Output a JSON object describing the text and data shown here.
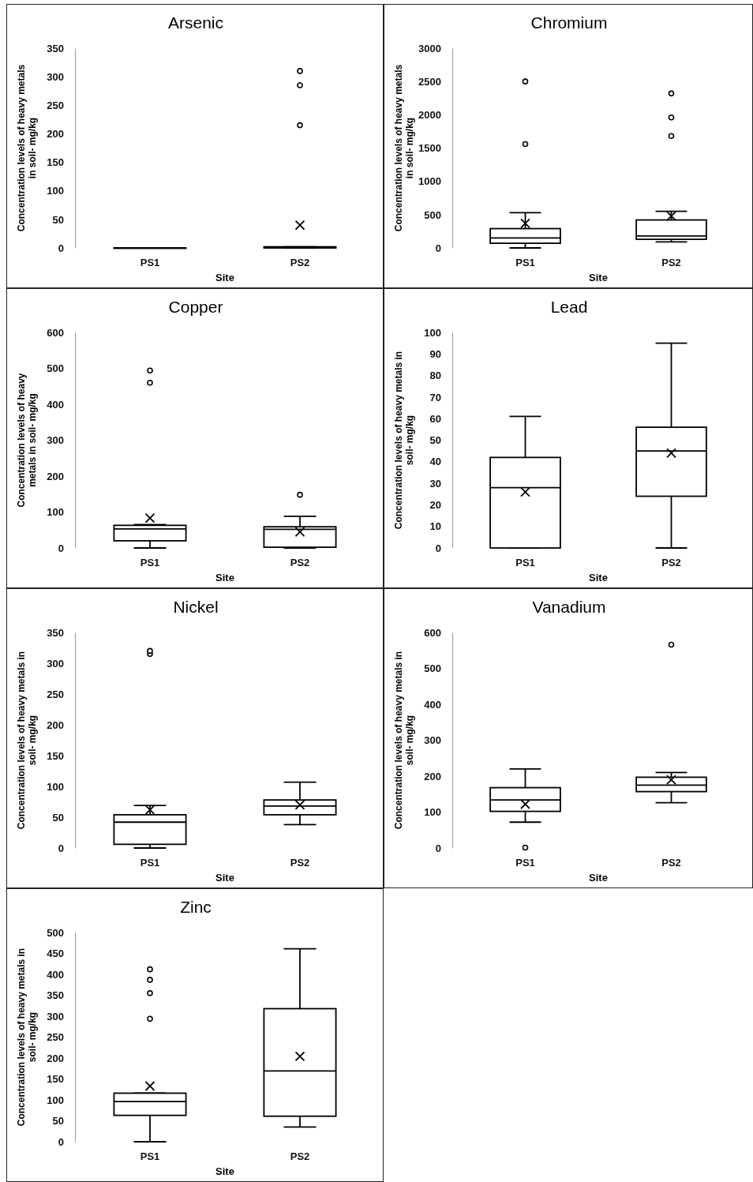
{
  "chart_data": [
    {
      "type": "box",
      "title": "Arsenic",
      "xlabel": "Site",
      "ylabel": "Concentration levels of heavy metals\nin soil- mg/kg",
      "categories": [
        "PS1",
        "PS2"
      ],
      "ylim": [
        0,
        350
      ],
      "yticks": [
        0,
        50,
        100,
        150,
        200,
        250,
        300,
        350
      ],
      "color": "#000000",
      "boxes": [
        {
          "low": 0,
          "q1": 0,
          "median": 0,
          "q3": 0,
          "high": 0
        },
        {
          "low": 0,
          "q1": 0,
          "median": 1,
          "q3": 2,
          "high": 2,
          "mean": 40,
          "outliers": [
            215,
            285,
            310
          ]
        }
      ]
    },
    {
      "type": "box",
      "title": "Chromium",
      "xlabel": "Site",
      "ylabel": "Concentration levels of heavy metals\nin soil- mg/kg",
      "categories": [
        "PS1",
        "PS2"
      ],
      "ylim": [
        0,
        3000
      ],
      "yticks": [
        0,
        500,
        1000,
        1500,
        2000,
        2500,
        3000
      ],
      "color": "#000000",
      "boxes": [
        {
          "low": 0,
          "q1": 70,
          "median": 150,
          "q3": 290,
          "high": 530,
          "mean": 370,
          "outliers": [
            1560,
            2500
          ]
        },
        {
          "low": 90,
          "q1": 130,
          "median": 180,
          "q3": 420,
          "high": 550,
          "mean": 480,
          "outliers": [
            1680,
            1960,
            2320
          ]
        }
      ]
    },
    {
      "type": "box",
      "title": "Copper",
      "xlabel": "Site",
      "ylabel": "Concentration levels of heavy\nmetals in soil- mg/kg",
      "categories": [
        "PS1",
        "PS2"
      ],
      "ylim": [
        0,
        600
      ],
      "yticks": [
        0,
        100,
        200,
        300,
        400,
        500,
        600
      ],
      "color": "#000000",
      "boxes": [
        {
          "low": 0,
          "q1": 20,
          "median": 53,
          "q3": 63,
          "high": 65,
          "mean": 83,
          "outliers": [
            460,
            494
          ]
        },
        {
          "low": 0,
          "q1": 2,
          "median": 52,
          "q3": 59,
          "high": 88,
          "mean": 45,
          "outliers": [
            148
          ]
        }
      ]
    },
    {
      "type": "box",
      "title": "Lead",
      "xlabel": "Site",
      "ylabel": "Concentration levels of heavy metals in\nsoil- mg/kg",
      "categories": [
        "PS1",
        "PS2"
      ],
      "ylim": [
        0,
        100
      ],
      "yticks": [
        0,
        10,
        20,
        30,
        40,
        50,
        60,
        70,
        80,
        90,
        100
      ],
      "color": "#000000",
      "boxes": [
        {
          "low": 0,
          "q1": 0,
          "median": 28,
          "q3": 42,
          "high": 61,
          "mean": 26
        },
        {
          "low": 0,
          "q1": 24,
          "median": 45,
          "q3": 56,
          "high": 95,
          "mean": 44
        }
      ]
    },
    {
      "type": "box",
      "title": "Nickel",
      "xlabel": "Site",
      "ylabel": "Concentration levels of heavy metals in\nsoil- mg/kg",
      "categories": [
        "PS1",
        "PS2"
      ],
      "ylim": [
        0,
        350
      ],
      "yticks": [
        0,
        50,
        100,
        150,
        200,
        250,
        300,
        350
      ],
      "color": "#000000",
      "boxes": [
        {
          "low": 0,
          "q1": 6,
          "median": 42,
          "q3": 54,
          "high": 69,
          "mean": 62,
          "outliers": [
            315,
            320
          ]
        },
        {
          "low": 38,
          "q1": 54,
          "median": 68,
          "q3": 78,
          "high": 107,
          "mean": 70
        }
      ]
    },
    {
      "type": "box",
      "title": "Vanadium",
      "xlabel": "Site",
      "ylabel": "Concentration levels of heavy metals in\nsoil- mg/kg",
      "categories": [
        "PS1",
        "PS2"
      ],
      "ylim": [
        0,
        600
      ],
      "yticks": [
        0,
        100,
        200,
        300,
        400,
        500,
        600
      ],
      "color": "#000000",
      "boxes": [
        {
          "low": 72,
          "q1": 102,
          "median": 134,
          "q3": 168,
          "high": 220,
          "mean": 122,
          "outliers": [
            1
          ]
        },
        {
          "low": 126,
          "q1": 157,
          "median": 175,
          "q3": 197,
          "high": 210,
          "mean": 190,
          "outliers": [
            566
          ]
        }
      ]
    },
    {
      "type": "box",
      "title": "Zinc",
      "xlabel": "Site",
      "ylabel": "Concentration levels of heavy metals in\nsoil- mg/kg",
      "categories": [
        "PS1",
        "PS2"
      ],
      "ylim": [
        0,
        500
      ],
      "yticks": [
        0,
        50,
        100,
        150,
        200,
        250,
        300,
        350,
        400,
        450,
        500
      ],
      "color": "#000000",
      "boxes": [
        {
          "low": 0,
          "q1": 63,
          "median": 96,
          "q3": 116,
          "high": 116,
          "mean": 133,
          "outliers": [
            294,
            355,
            387,
            412
          ]
        },
        {
          "low": 35,
          "q1": 61,
          "median": 169,
          "q3": 318,
          "high": 461,
          "mean": 204
        }
      ]
    }
  ]
}
